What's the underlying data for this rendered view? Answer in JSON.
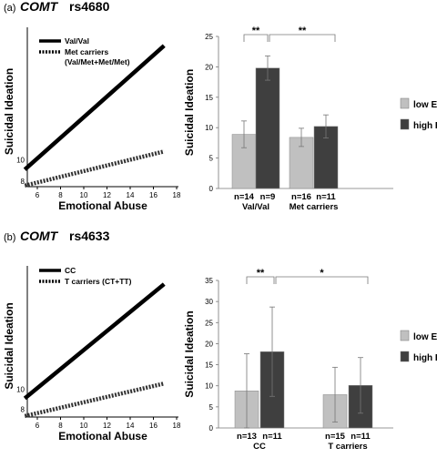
{
  "panels": [
    {
      "label": "(a)",
      "gene": "COMT",
      "snp": "rs4680",
      "colors": {
        "line_solid": "#000000",
        "line_dashed": "#333333",
        "bar_low": "#c0c0c0",
        "bar_high": "#3f3f3f"
      },
      "chart_data": [
        {
          "type": "line",
          "xlabel": "Emotional Abuse",
          "ylabel": "Suicidal Ideation",
          "xlim": [
            5,
            18
          ],
          "ylim": [
            7.5,
            22
          ],
          "xticks": [
            "6",
            "8",
            "10",
            "12",
            "14",
            "16",
            "18"
          ],
          "yticks": [
            "8",
            "10"
          ],
          "series": [
            {
              "name": "Val/Val",
              "style": "solid",
              "x": [
                5,
                17
              ],
              "y": [
                9.1,
                20.7
              ]
            },
            {
              "name": "Met carriers",
              "name_line2": "(Val/Met+Met/Met)",
              "style": "dashed",
              "x": [
                5,
                17
              ],
              "y": [
                7.6,
                10.8
              ]
            }
          ],
          "legend_position": "top-left"
        },
        {
          "type": "bar",
          "ylabel": "Suicidal Ideation",
          "ylim": [
            0,
            25
          ],
          "yticks": [
            "0",
            "5",
            "10",
            "15",
            "20",
            "25"
          ],
          "categories": [
            "Val/Val",
            "Met carriers"
          ],
          "series": [
            {
              "name": "low EA",
              "values": [
                8.9,
                8.4
              ],
              "errors": [
                2.2,
                1.5
              ],
              "n": [
                "n=14",
                "n=16"
              ]
            },
            {
              "name": "high EA",
              "values": [
                19.8,
                10.2
              ],
              "errors": [
                2.0,
                1.9
              ],
              "n": [
                "n=9",
                "n=11"
              ]
            }
          ],
          "significance": [
            "**",
            "**"
          ],
          "legend_position": "right"
        }
      ]
    },
    {
      "label": "(b)",
      "gene": "COMT",
      "snp": "rs4633",
      "colors": {
        "line_solid": "#000000",
        "line_dashed": "#333333",
        "bar_low": "#c0c0c0",
        "bar_high": "#3f3f3f"
      },
      "chart_data": [
        {
          "type": "line",
          "xlabel": "Emotional Abuse",
          "ylabel": "Suicidal Ideation",
          "xlim": [
            5,
            18
          ],
          "ylim": [
            7.2,
            22
          ],
          "xticks": [
            "6",
            "8",
            "10",
            "12",
            "14",
            "16",
            "18"
          ],
          "yticks": [
            "8",
            "10"
          ],
          "series": [
            {
              "name": "CC",
              "style": "solid",
              "x": [
                5,
                17
              ],
              "y": [
                9.1,
                20.7
              ]
            },
            {
              "name": "T carriers (CT+TT)",
              "name_line2": "",
              "style": "dashed",
              "x": [
                5,
                17
              ],
              "y": [
                7.3,
                10.6
              ]
            }
          ],
          "legend_position": "top-left"
        },
        {
          "type": "bar",
          "ylabel": "Suicidal Ideation",
          "ylim": [
            0,
            35
          ],
          "yticks": [
            "0",
            "5",
            "10",
            "15",
            "20",
            "25",
            "30",
            "35"
          ],
          "categories": [
            "CC",
            "T carriers"
          ],
          "series": [
            {
              "name": "low EA",
              "values": [
                8.8,
                7.9
              ],
              "errors": [
                8.8,
                6.5
              ],
              "n": [
                "n=13",
                "n=15"
              ]
            },
            {
              "name": "high EA",
              "values": [
                18.1,
                10.1
              ],
              "errors": [
                10.6,
                6.6
              ],
              "n": [
                "n=11",
                "n=11"
              ]
            }
          ],
          "significance": [
            "**",
            "*"
          ],
          "legend_position": "right"
        }
      ]
    }
  ]
}
